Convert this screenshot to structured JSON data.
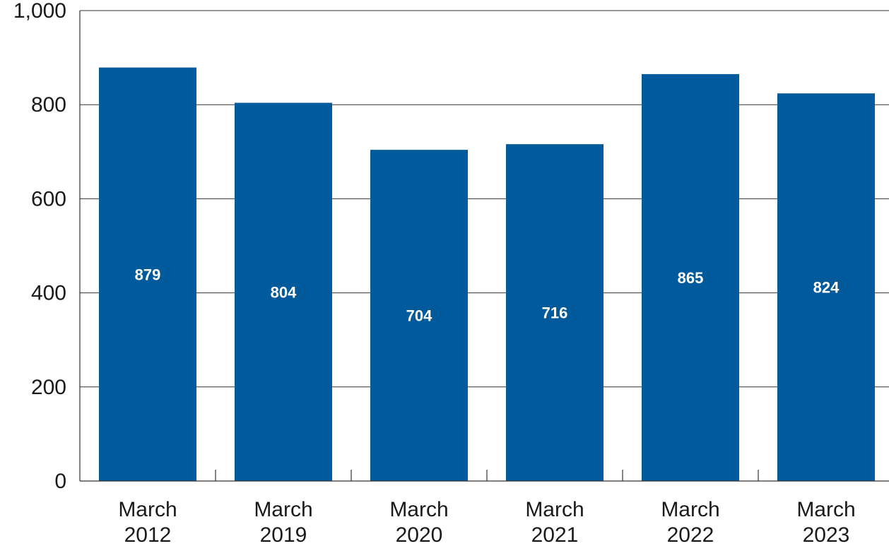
{
  "chart_data": {
    "type": "bar",
    "categories": [
      [
        "March",
        "2012"
      ],
      [
        "March",
        "2019"
      ],
      [
        "March",
        "2020"
      ],
      [
        "March",
        "2021"
      ],
      [
        "March",
        "2022"
      ],
      [
        "March",
        "2023"
      ]
    ],
    "values": [
      879,
      804,
      704,
      716,
      865,
      824
    ],
    "data_labels": [
      "879",
      "804",
      "704",
      "716",
      "865",
      "824"
    ],
    "ylim": [
      0,
      1000
    ],
    "yticks": [
      0,
      200,
      400,
      600,
      800,
      1000
    ],
    "ytick_labels": [
      "0",
      "200",
      "400",
      "600",
      "800",
      "1,000"
    ],
    "grid": true,
    "bar_color": "#005a9c",
    "title": "",
    "xlabel": "",
    "ylabel": ""
  }
}
